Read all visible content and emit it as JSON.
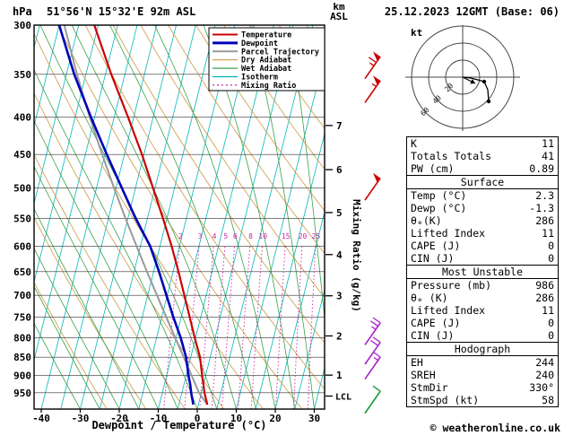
{
  "header": {
    "pressure_unit": "hPa",
    "station": "51°56'N 15°32'E 92m ASL",
    "datetime": "25.12.2023 12GMT (Base: 06)",
    "altitude_unit_km": "km",
    "altitude_unit_asl": "ASL"
  },
  "chart_data": {
    "type": "skewt_log_p",
    "xlabel": "Dewpoint / Temperature (°C)",
    "mixing_axis_label": "Mixing Ratio (g/kg)",
    "pressure_ticks": [
      300,
      350,
      400,
      450,
      500,
      550,
      600,
      650,
      700,
      750,
      800,
      850,
      900,
      950
    ],
    "temp_ticks": [
      -40,
      -30,
      -20,
      -10,
      0,
      10,
      20,
      30
    ],
    "km_ticks": [
      {
        "km": 7,
        "p": 411
      },
      {
        "km": 6,
        "p": 472
      },
      {
        "km": 5,
        "p": 540
      },
      {
        "km": 4,
        "p": 616
      },
      {
        "km": 3,
        "p": 701
      },
      {
        "km": 2,
        "p": 795
      },
      {
        "km": 1,
        "p": 899
      }
    ],
    "lcl": {
      "label": "LCL",
      "p": 960
    },
    "mixing_ratio_values": [
      2,
      3,
      4,
      5,
      6,
      8,
      10,
      15,
      20,
      25
    ],
    "series": {
      "temperature": [
        [
          986,
          2.3
        ],
        [
          950,
          0.8
        ],
        [
          925,
          0.0
        ],
        [
          900,
          -0.9
        ],
        [
          850,
          -2.6
        ],
        [
          800,
          -5.2
        ],
        [
          750,
          -7.8
        ],
        [
          700,
          -10.6
        ],
        [
          650,
          -13.6
        ],
        [
          600,
          -17.0
        ],
        [
          550,
          -21.0
        ],
        [
          500,
          -25.5
        ],
        [
          450,
          -30.5
        ],
        [
          400,
          -36.5
        ],
        [
          350,
          -43.5
        ],
        [
          300,
          -51.0
        ]
      ],
      "dewpoint": [
        [
          986,
          -1.3
        ],
        [
          950,
          -2.6
        ],
        [
          925,
          -3.4
        ],
        [
          900,
          -4.4
        ],
        [
          850,
          -6.2
        ],
        [
          800,
          -8.8
        ],
        [
          750,
          -12.0
        ],
        [
          700,
          -15.2
        ],
        [
          650,
          -18.6
        ],
        [
          600,
          -22.5
        ],
        [
          550,
          -28.0
        ],
        [
          500,
          -33.5
        ],
        [
          450,
          -39.5
        ],
        [
          400,
          -46.0
        ],
        [
          350,
          -53.0
        ],
        [
          300,
          -60.0
        ]
      ],
      "parcel": [
        [
          986,
          2.3
        ],
        [
          950,
          -0.6
        ],
        [
          900,
          -3.6
        ],
        [
          850,
          -6.8
        ],
        [
          800,
          -10.2
        ],
        [
          750,
          -13.8
        ],
        [
          700,
          -17.6
        ],
        [
          650,
          -21.7
        ],
        [
          600,
          -26.0
        ],
        [
          550,
          -30.6
        ],
        [
          500,
          -35.5
        ],
        [
          450,
          -40.7
        ],
        [
          400,
          -46.3
        ],
        [
          350,
          -52.3
        ],
        [
          300,
          -58.7
        ]
      ]
    },
    "wind_barbs": [
      {
        "p": 345,
        "speed": 65,
        "color": "#cc0000"
      },
      {
        "p": 372,
        "speed": 55,
        "color": "#cc0000"
      },
      {
        "p": 505,
        "speed": 50,
        "color": "#cc0000"
      },
      {
        "p": 795,
        "speed": 25,
        "color": "#aa22cc"
      },
      {
        "p": 845,
        "speed": 20,
        "color": "#aa22cc"
      },
      {
        "p": 885,
        "speed": 15,
        "color": "#aa22cc"
      },
      {
        "p": 985,
        "speed": 10,
        "color": "#119933"
      }
    ],
    "legend": [
      {
        "label": "Temperature",
        "color": "#cc0000",
        "width": 2
      },
      {
        "label": "Dewpoint",
        "color": "#0000bb",
        "width": 3
      },
      {
        "label": "Parcel Trajectory",
        "color": "#999999",
        "width": 2
      },
      {
        "label": "Dry Adiabat",
        "color": "#cc9944",
        "width": 1.2
      },
      {
        "label": "Wet Adiabat",
        "color": "#3aa04a",
        "width": 1.2
      },
      {
        "label": "Isotherm",
        "color": "#00b6b6",
        "width": 1.2
      },
      {
        "label": "Mixing Ratio",
        "color": "#cc22aa",
        "width": 1.2,
        "dash": "2,3"
      }
    ],
    "colors": {
      "temperature": "#cc0000",
      "dewpoint": "#0000bb",
      "parcel": "#999999",
      "dry_adiabat": "#cc9944",
      "wet_adiabat": "#3aa04a",
      "isotherm": "#00b6b6",
      "mixing_ratio": "#cc22aa"
    }
  },
  "hodograph": {
    "unit_label": "kt",
    "ring_radii_kt": [
      20,
      40,
      60
    ],
    "ring_labels": [
      "20",
      "40",
      "60"
    ],
    "trace": [
      [
        0,
        0
      ],
      [
        9,
        1
      ],
      [
        17,
        3
      ],
      [
        24,
        5
      ],
      [
        28,
        14
      ],
      [
        29,
        27
      ]
    ],
    "dots": [
      [
        24,
        5
      ],
      [
        29,
        27
      ]
    ],
    "arrow": [
      14,
      7
    ]
  },
  "stats": {
    "sections": [
      {
        "rows": [
          [
            "K",
            "11"
          ],
          [
            "Totals Totals",
            "41"
          ],
          [
            "PW (cm)",
            "0.89"
          ]
        ]
      },
      {
        "title": "Surface",
        "rows": [
          [
            "Temp (°C)",
            "2.3"
          ],
          [
            "Dewp (°C)",
            "-1.3"
          ],
          [
            "θₑ(K)",
            "286"
          ],
          [
            "Lifted Index",
            "11"
          ],
          [
            "CAPE (J)",
            "0"
          ],
          [
            "CIN (J)",
            "0"
          ]
        ]
      },
      {
        "title": "Most Unstable",
        "rows": [
          [
            "Pressure (mb)",
            "986"
          ],
          [
            "θₑ (K)",
            "286"
          ],
          [
            "Lifted Index",
            "11"
          ],
          [
            "CAPE (J)",
            "0"
          ],
          [
            "CIN (J)",
            "0"
          ]
        ]
      },
      {
        "title": "Hodograph",
        "rows": [
          [
            "EH",
            "244"
          ],
          [
            "SREH",
            "240"
          ],
          [
            "StmDir",
            "330°"
          ],
          [
            "StmSpd (kt)",
            "58"
          ]
        ]
      }
    ]
  },
  "footer": {
    "copyright": "© weatheronline.co.uk"
  }
}
